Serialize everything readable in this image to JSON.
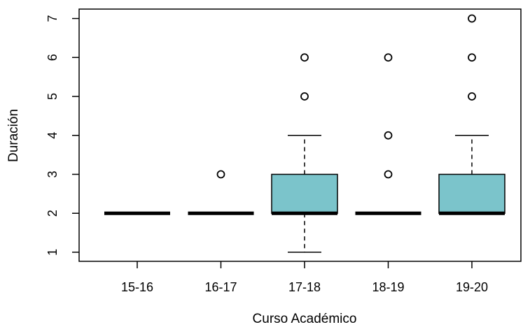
{
  "chart_data": {
    "type": "boxplot",
    "title": "",
    "xlabel": "Curso Académico",
    "ylabel": "Duración",
    "categories": [
      "15-16",
      "16-17",
      "17-18",
      "18-19",
      "19-20"
    ],
    "yticks": [
      1,
      2,
      3,
      4,
      5,
      6,
      7
    ],
    "ylim": [
      0.75,
      7.25
    ],
    "grid": false,
    "box_fill_color": "#7bc4cb",
    "boxes": [
      {
        "category": "15-16",
        "whisker_low": 2,
        "q1": 2,
        "median": 2,
        "q3": 2,
        "whisker_high": 2,
        "outliers": []
      },
      {
        "category": "16-17",
        "whisker_low": 2,
        "q1": 2,
        "median": 2,
        "q3": 2,
        "whisker_high": 2,
        "outliers": [
          3
        ]
      },
      {
        "category": "17-18",
        "whisker_low": 1,
        "q1": 2,
        "median": 2,
        "q3": 3,
        "whisker_high": 4,
        "outliers": [
          5,
          6
        ]
      },
      {
        "category": "18-19",
        "whisker_low": 2,
        "q1": 2,
        "median": 2,
        "q3": 2,
        "whisker_high": 2,
        "outliers": [
          3,
          4,
          6
        ]
      },
      {
        "category": "19-20",
        "whisker_low": 2,
        "q1": 2,
        "median": 2,
        "q3": 3,
        "whisker_high": 4,
        "outliers": [
          5,
          6,
          7
        ]
      }
    ]
  }
}
